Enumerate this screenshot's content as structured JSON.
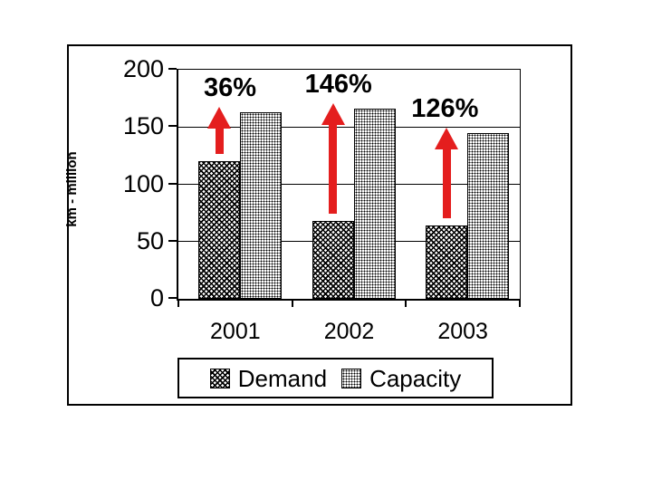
{
  "window": {
    "background": "#ffffff"
  },
  "chart_data": {
    "type": "bar",
    "title": "",
    "xlabel": "",
    "ylabel": "km - million",
    "categories": [
      "2001",
      "2002",
      "2003"
    ],
    "series": [
      {
        "name": "Demand",
        "pattern": "dark-crosshatch",
        "values": [
          120,
          68,
          64
        ]
      },
      {
        "name": "Capacity",
        "pattern": "light-dots",
        "values": [
          163,
          166,
          145
        ]
      }
    ],
    "annotations": [
      {
        "category": "2001",
        "label": "36%"
      },
      {
        "category": "2002",
        "label": "146%"
      },
      {
        "category": "2003",
        "label": "126%"
      }
    ],
    "ylim": [
      0,
      200
    ],
    "yticks": [
      0,
      50,
      100,
      150,
      200
    ],
    "grid": true,
    "legend": {
      "position": "bottom",
      "labels": [
        "Demand",
        "Capacity"
      ]
    }
  },
  "colors": {
    "arrow_red": "#e41e1e",
    "axis_black": "#000000",
    "chart_background": "#ffffff"
  }
}
